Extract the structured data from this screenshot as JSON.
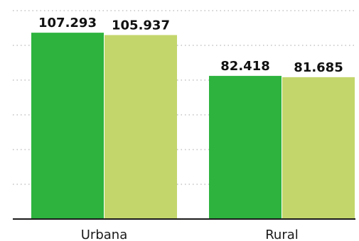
{
  "chart_data": {
    "type": "bar",
    "categories": [
      "Urbana",
      "Rural"
    ],
    "series": [
      {
        "color": "#2db33e",
        "values": [
          107.293,
          82.418
        ],
        "labels": [
          "107.293",
          "82.418"
        ]
      },
      {
        "color": "#c3d66c",
        "values": [
          105.937,
          81.685
        ],
        "labels": [
          "105.937",
          "81.685"
        ]
      }
    ],
    "ylim": [
      0,
      120
    ],
    "grid": true,
    "legend": "none"
  }
}
